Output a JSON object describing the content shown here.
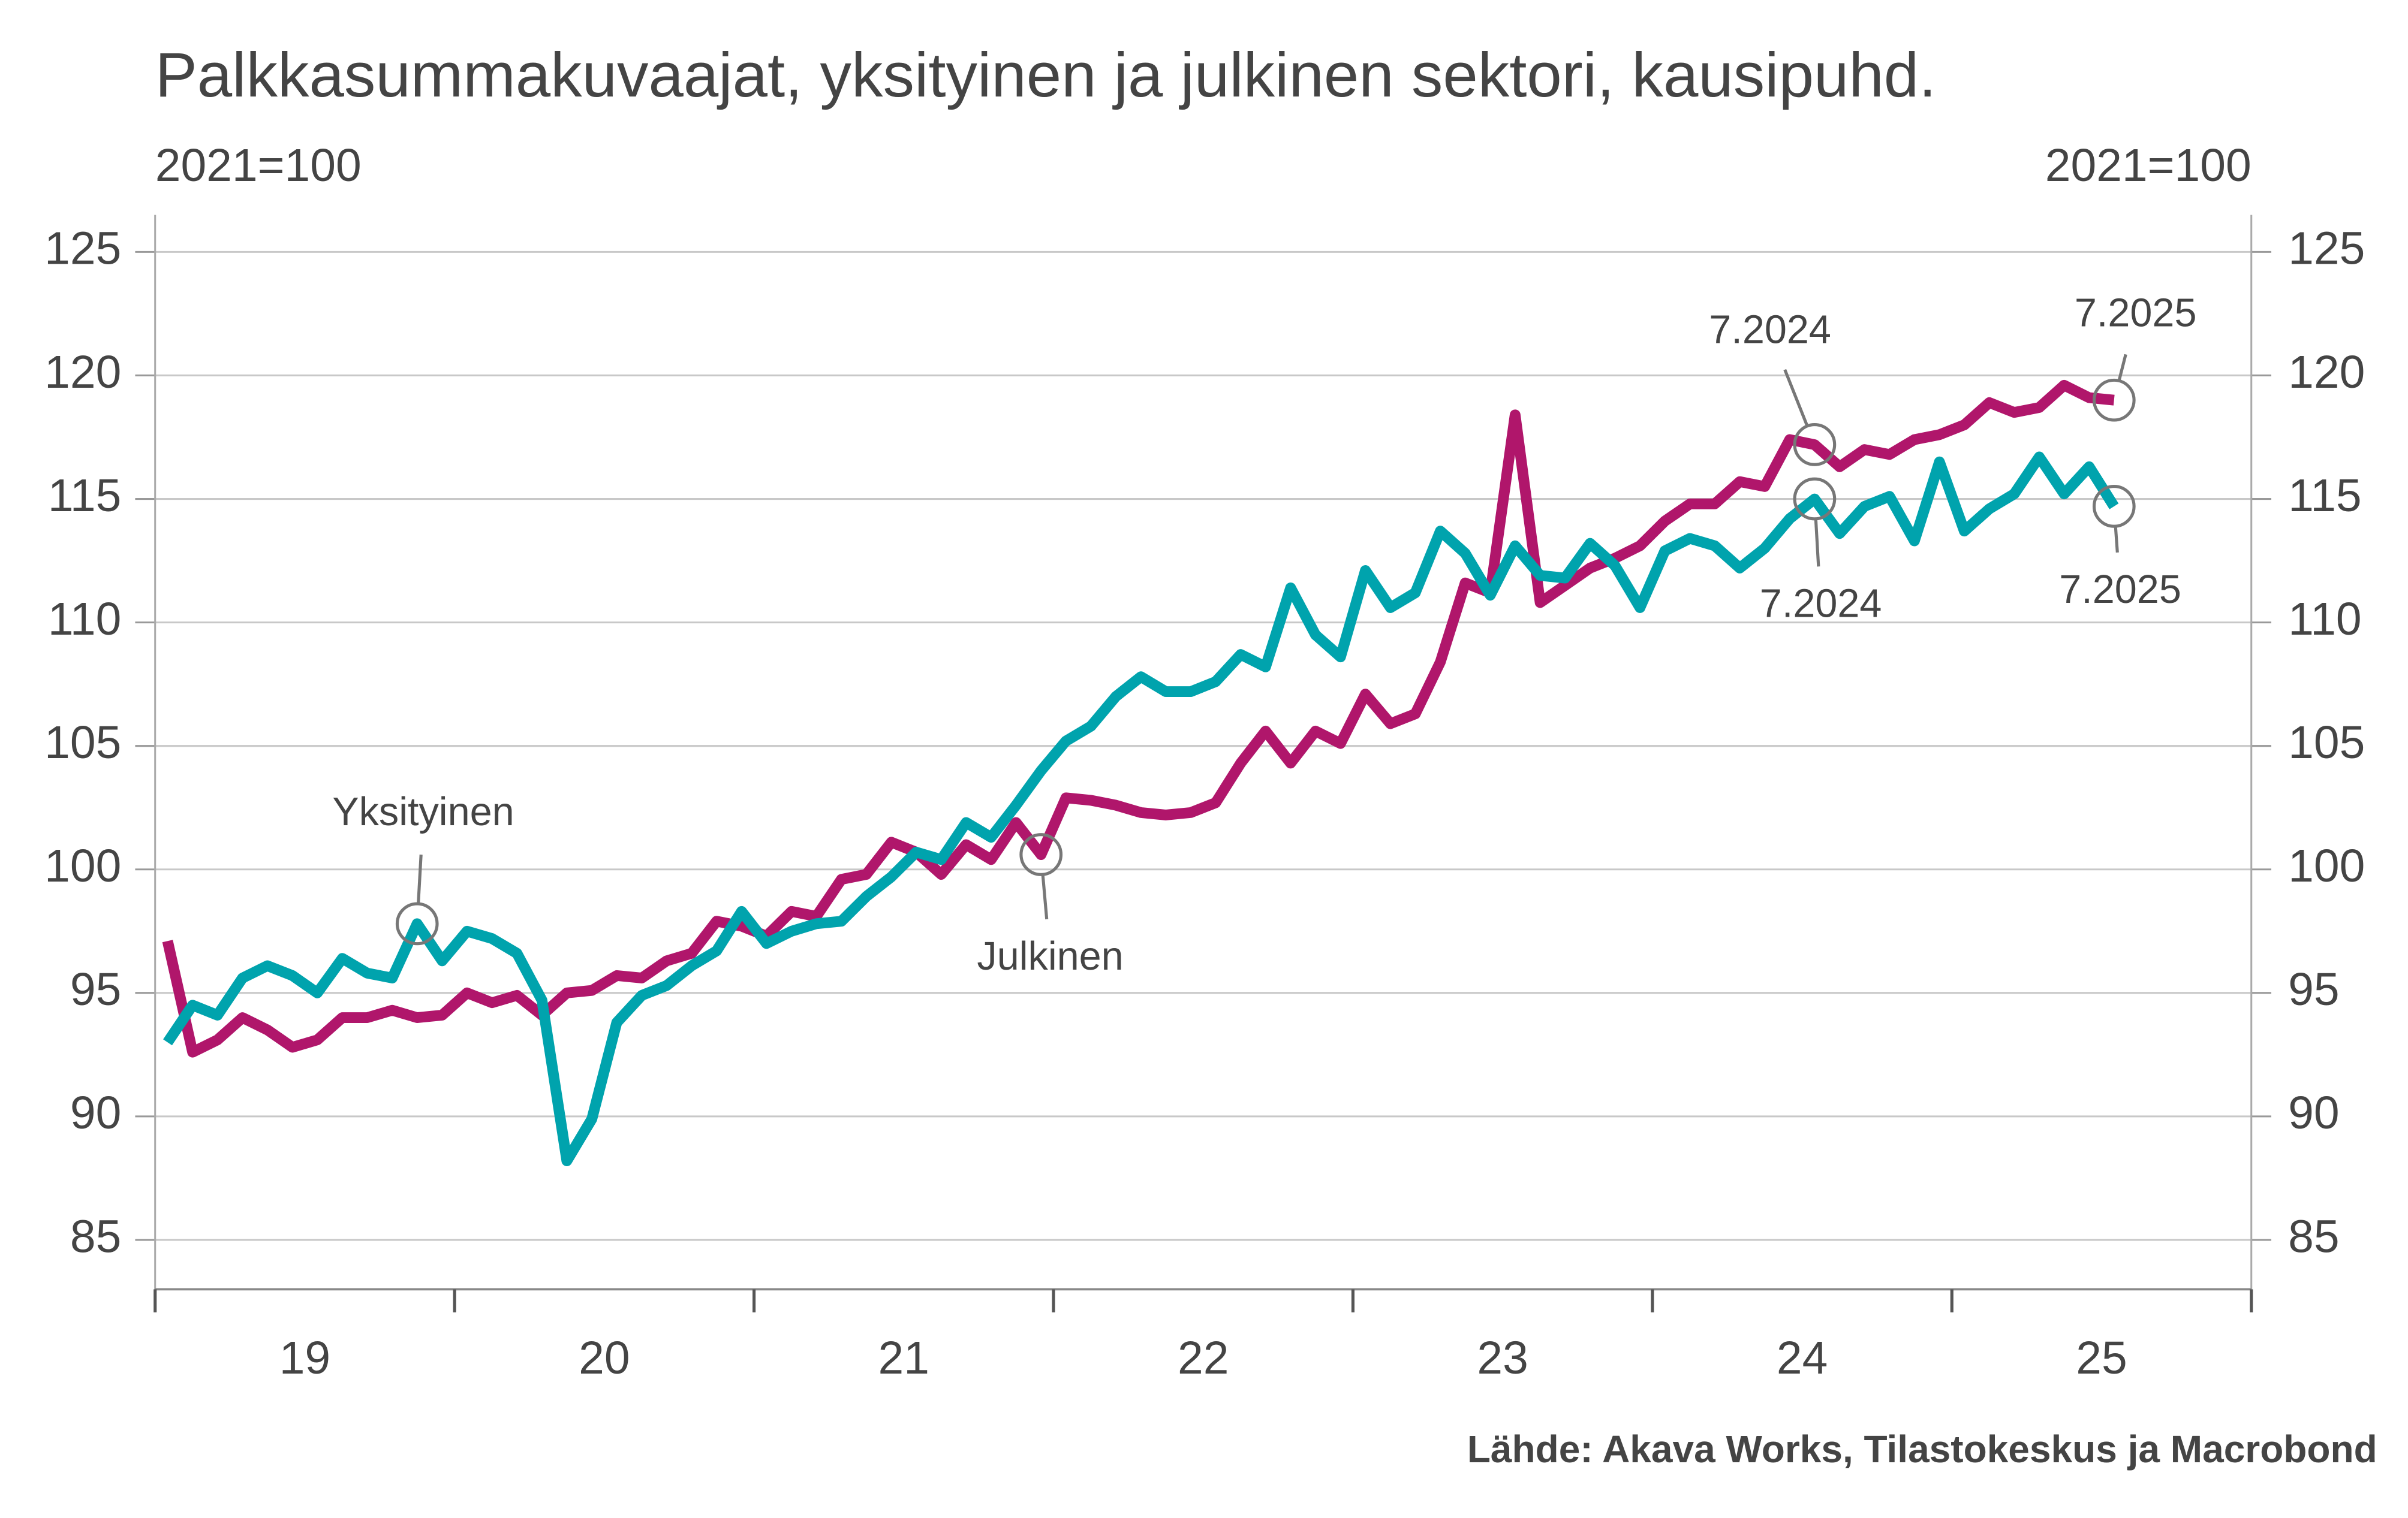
{
  "chart_data": {
    "type": "line",
    "title": "Palkkasummakuvaajat, yksityinen ja julkinen sektori, kausipuhd.",
    "y_label": "2021=100",
    "y2_label": "2021=100",
    "source": "Lähde: Akava Works, Tilastokeskus ja Macrobond",
    "x": [
      "1.2019",
      "2.2019",
      "3.2019",
      "4.2019",
      "5.2019",
      "6.2019",
      "7.2019",
      "8.2019",
      "9.2019",
      "10.2019",
      "11.2019",
      "12.2019",
      "1.2020",
      "2.2020",
      "3.2020",
      "4.2020",
      "5.2020",
      "6.2020",
      "7.2020",
      "8.2020",
      "9.2020",
      "10.2020",
      "11.2020",
      "12.2020",
      "1.2021",
      "2.2021",
      "3.2021",
      "4.2021",
      "5.2021",
      "6.2021",
      "7.2021",
      "8.2021",
      "9.2021",
      "10.2021",
      "11.2021",
      "12.2021",
      "1.2022",
      "2.2022",
      "3.2022",
      "4.2022",
      "5.2022",
      "6.2022",
      "7.2022",
      "8.2022",
      "9.2022",
      "10.2022",
      "11.2022",
      "12.2022",
      "1.2023",
      "2.2023",
      "3.2023",
      "4.2023",
      "5.2023",
      "6.2023",
      "7.2023",
      "8.2023",
      "9.2023",
      "10.2023",
      "11.2023",
      "12.2023",
      "1.2024",
      "2.2024",
      "3.2024",
      "4.2024",
      "5.2024",
      "6.2024",
      "7.2024",
      "8.2024",
      "9.2024",
      "10.2024",
      "11.2024",
      "12.2024",
      "1.2025",
      "2.2025",
      "3.2025",
      "4.2025",
      "5.2025",
      "6.2025",
      "7.2025"
    ],
    "series": [
      {
        "name": "Yksityinen",
        "color": "#00a3ad",
        "values": [
          93.0,
          94.5,
          94.1,
          95.6,
          96.1,
          95.7,
          95.0,
          96.4,
          95.8,
          95.6,
          97.8,
          96.3,
          97.5,
          97.2,
          96.6,
          94.7,
          88.2,
          89.9,
          93.8,
          94.9,
          95.3,
          96.1,
          96.7,
          98.3,
          97.0,
          97.5,
          97.8,
          97.9,
          98.9,
          99.7,
          100.7,
          100.4,
          101.9,
          101.3,
          102.6,
          104.0,
          105.2,
          105.8,
          107.0,
          107.8,
          107.2,
          107.2,
          107.6,
          108.7,
          108.2,
          111.4,
          109.5,
          108.6,
          112.1,
          110.6,
          111.2,
          113.7,
          112.8,
          111.1,
          113.1,
          111.9,
          111.8,
          113.2,
          112.3,
          110.6,
          112.9,
          113.4,
          113.1,
          112.2,
          113.0,
          114.2,
          115.0,
          113.6,
          114.7,
          115.1,
          113.3,
          116.5,
          113.7,
          114.6,
          115.2,
          116.7,
          115.2,
          116.3,
          114.7
        ]
      },
      {
        "name": "Julkinen",
        "color": "#b0166b",
        "values": [
          97.1,
          92.6,
          93.1,
          94.0,
          93.5,
          92.8,
          93.1,
          94.0,
          94.0,
          94.3,
          94.0,
          94.1,
          95.0,
          94.6,
          94.9,
          94.1,
          95.0,
          95.1,
          95.7,
          95.6,
          96.3,
          96.6,
          97.9,
          97.7,
          97.3,
          98.3,
          98.1,
          99.6,
          99.8,
          101.1,
          100.7,
          99.8,
          101.0,
          100.4,
          101.9,
          100.6,
          102.9,
          102.8,
          102.6,
          102.3,
          102.2,
          102.3,
          102.7,
          104.3,
          105.6,
          104.3,
          105.6,
          105.1,
          107.1,
          105.9,
          106.3,
          108.4,
          111.6,
          111.2,
          118.4,
          110.8,
          111.5,
          112.2,
          112.6,
          113.1,
          114.1,
          114.8,
          114.8,
          115.7,
          115.5,
          117.4,
          117.2,
          116.3,
          117.0,
          116.8,
          117.4,
          117.6,
          118.0,
          118.9,
          118.5,
          118.7,
          119.6,
          119.1,
          119.0
        ]
      }
    ],
    "annotations": [
      {
        "label": "7.2024",
        "series": 1
      },
      {
        "label": "7.2024",
        "series": 0
      },
      {
        "label": "7.2025",
        "series": 1
      },
      {
        "label": "7.2025",
        "series": 0
      }
    ],
    "xlim": [
      2019,
      2026
    ],
    "xticks": [
      2019,
      2020,
      2021,
      2022,
      2023,
      2024,
      2025,
      2026
    ],
    "xtick_labels": [
      {
        "value": 2019.5,
        "label": "19"
      },
      {
        "value": 2020.5,
        "label": "20"
      },
      {
        "value": 2021.5,
        "label": "21"
      },
      {
        "value": 2022.5,
        "label": "22"
      },
      {
        "value": 2023.5,
        "label": "23"
      },
      {
        "value": 2024.5,
        "label": "24"
      },
      {
        "value": 2025.5,
        "label": "25"
      }
    ],
    "ylim": [
      83,
      126.5
    ],
    "yticks": [
      85,
      90,
      95,
      100,
      105,
      110,
      115,
      120,
      125
    ],
    "y2lim": [
      83,
      126.5
    ],
    "y2ticks": [
      85,
      90,
      95,
      100,
      105,
      110,
      115,
      120,
      125
    ],
    "grid": true
  }
}
